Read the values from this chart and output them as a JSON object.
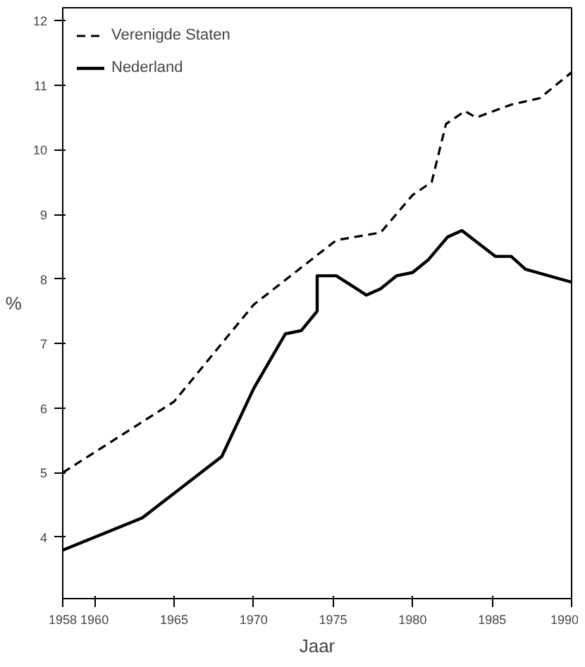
{
  "chart_data": {
    "type": "line",
    "xlabel": "Jaar",
    "ylabel": "%",
    "xlim": [
      1958,
      1990
    ],
    "ylim": [
      3.05,
      12.2
    ],
    "xticks": [
      1958,
      1960,
      1965,
      1970,
      1975,
      1980,
      1985,
      1990
    ],
    "yticks": [
      4,
      5,
      6,
      7,
      8,
      9,
      10,
      11,
      12
    ],
    "grid": false,
    "legend": "top left",
    "series": [
      {
        "name": "Verenigde Staten",
        "color": "#000000",
        "line_style": "dashed",
        "x": [
          1958,
          1965,
          1970,
          1975.2,
          1978,
          1980,
          1981.2,
          1982.1,
          1983.3,
          1984,
          1986.2,
          1988,
          1990
        ],
        "values": [
          5.0,
          6.1,
          7.6,
          8.6,
          8.72,
          9.3,
          9.5,
          10.4,
          10.6,
          10.5,
          10.7,
          10.8,
          11.2
        ]
      },
      {
        "name": "Nederland",
        "color": "#000000",
        "line_style": "solid",
        "x": [
          1958,
          1960,
          1963,
          1968,
          1970,
          1972,
          1973,
          1974,
          1974,
          1975.2,
          1977.1,
          1978,
          1979,
          1980,
          1981,
          1982.2,
          1983.1,
          1985.2,
          1986.2,
          1987.1,
          1990
        ],
        "values": [
          3.8,
          4.0,
          4.3,
          5.25,
          6.3,
          7.15,
          7.2,
          7.5,
          8.05,
          8.05,
          7.75,
          7.85,
          8.05,
          8.1,
          8.3,
          8.65,
          8.75,
          8.35,
          8.35,
          8.15,
          7.95
        ]
      }
    ]
  }
}
